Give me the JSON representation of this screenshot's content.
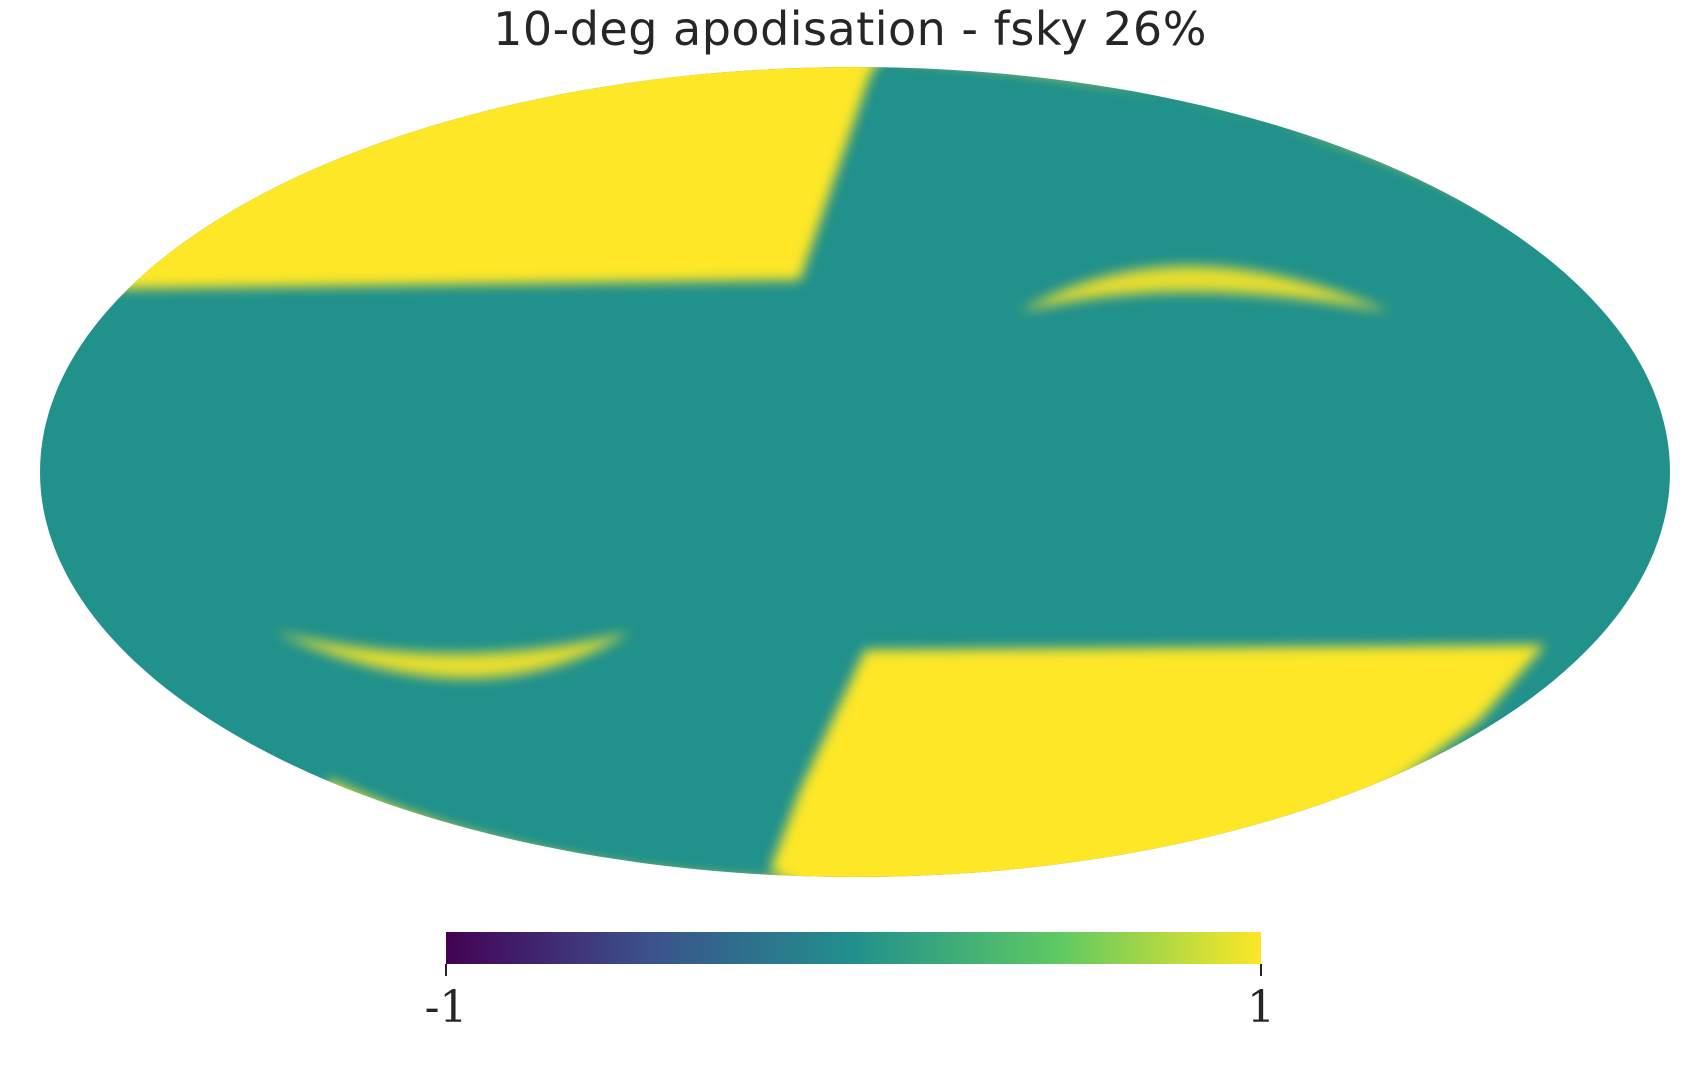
{
  "title": "10-deg apodisation - fsky 26%",
  "projection": "mollweide",
  "colormap": {
    "name": "viridis",
    "stops": [
      "#440154",
      "#3b528b",
      "#21908d",
      "#5dc963",
      "#fde725"
    ],
    "min_label": "-1",
    "max_label": "1"
  },
  "map_colors": {
    "background": "#21918c",
    "masked_region": "#fde725"
  }
}
